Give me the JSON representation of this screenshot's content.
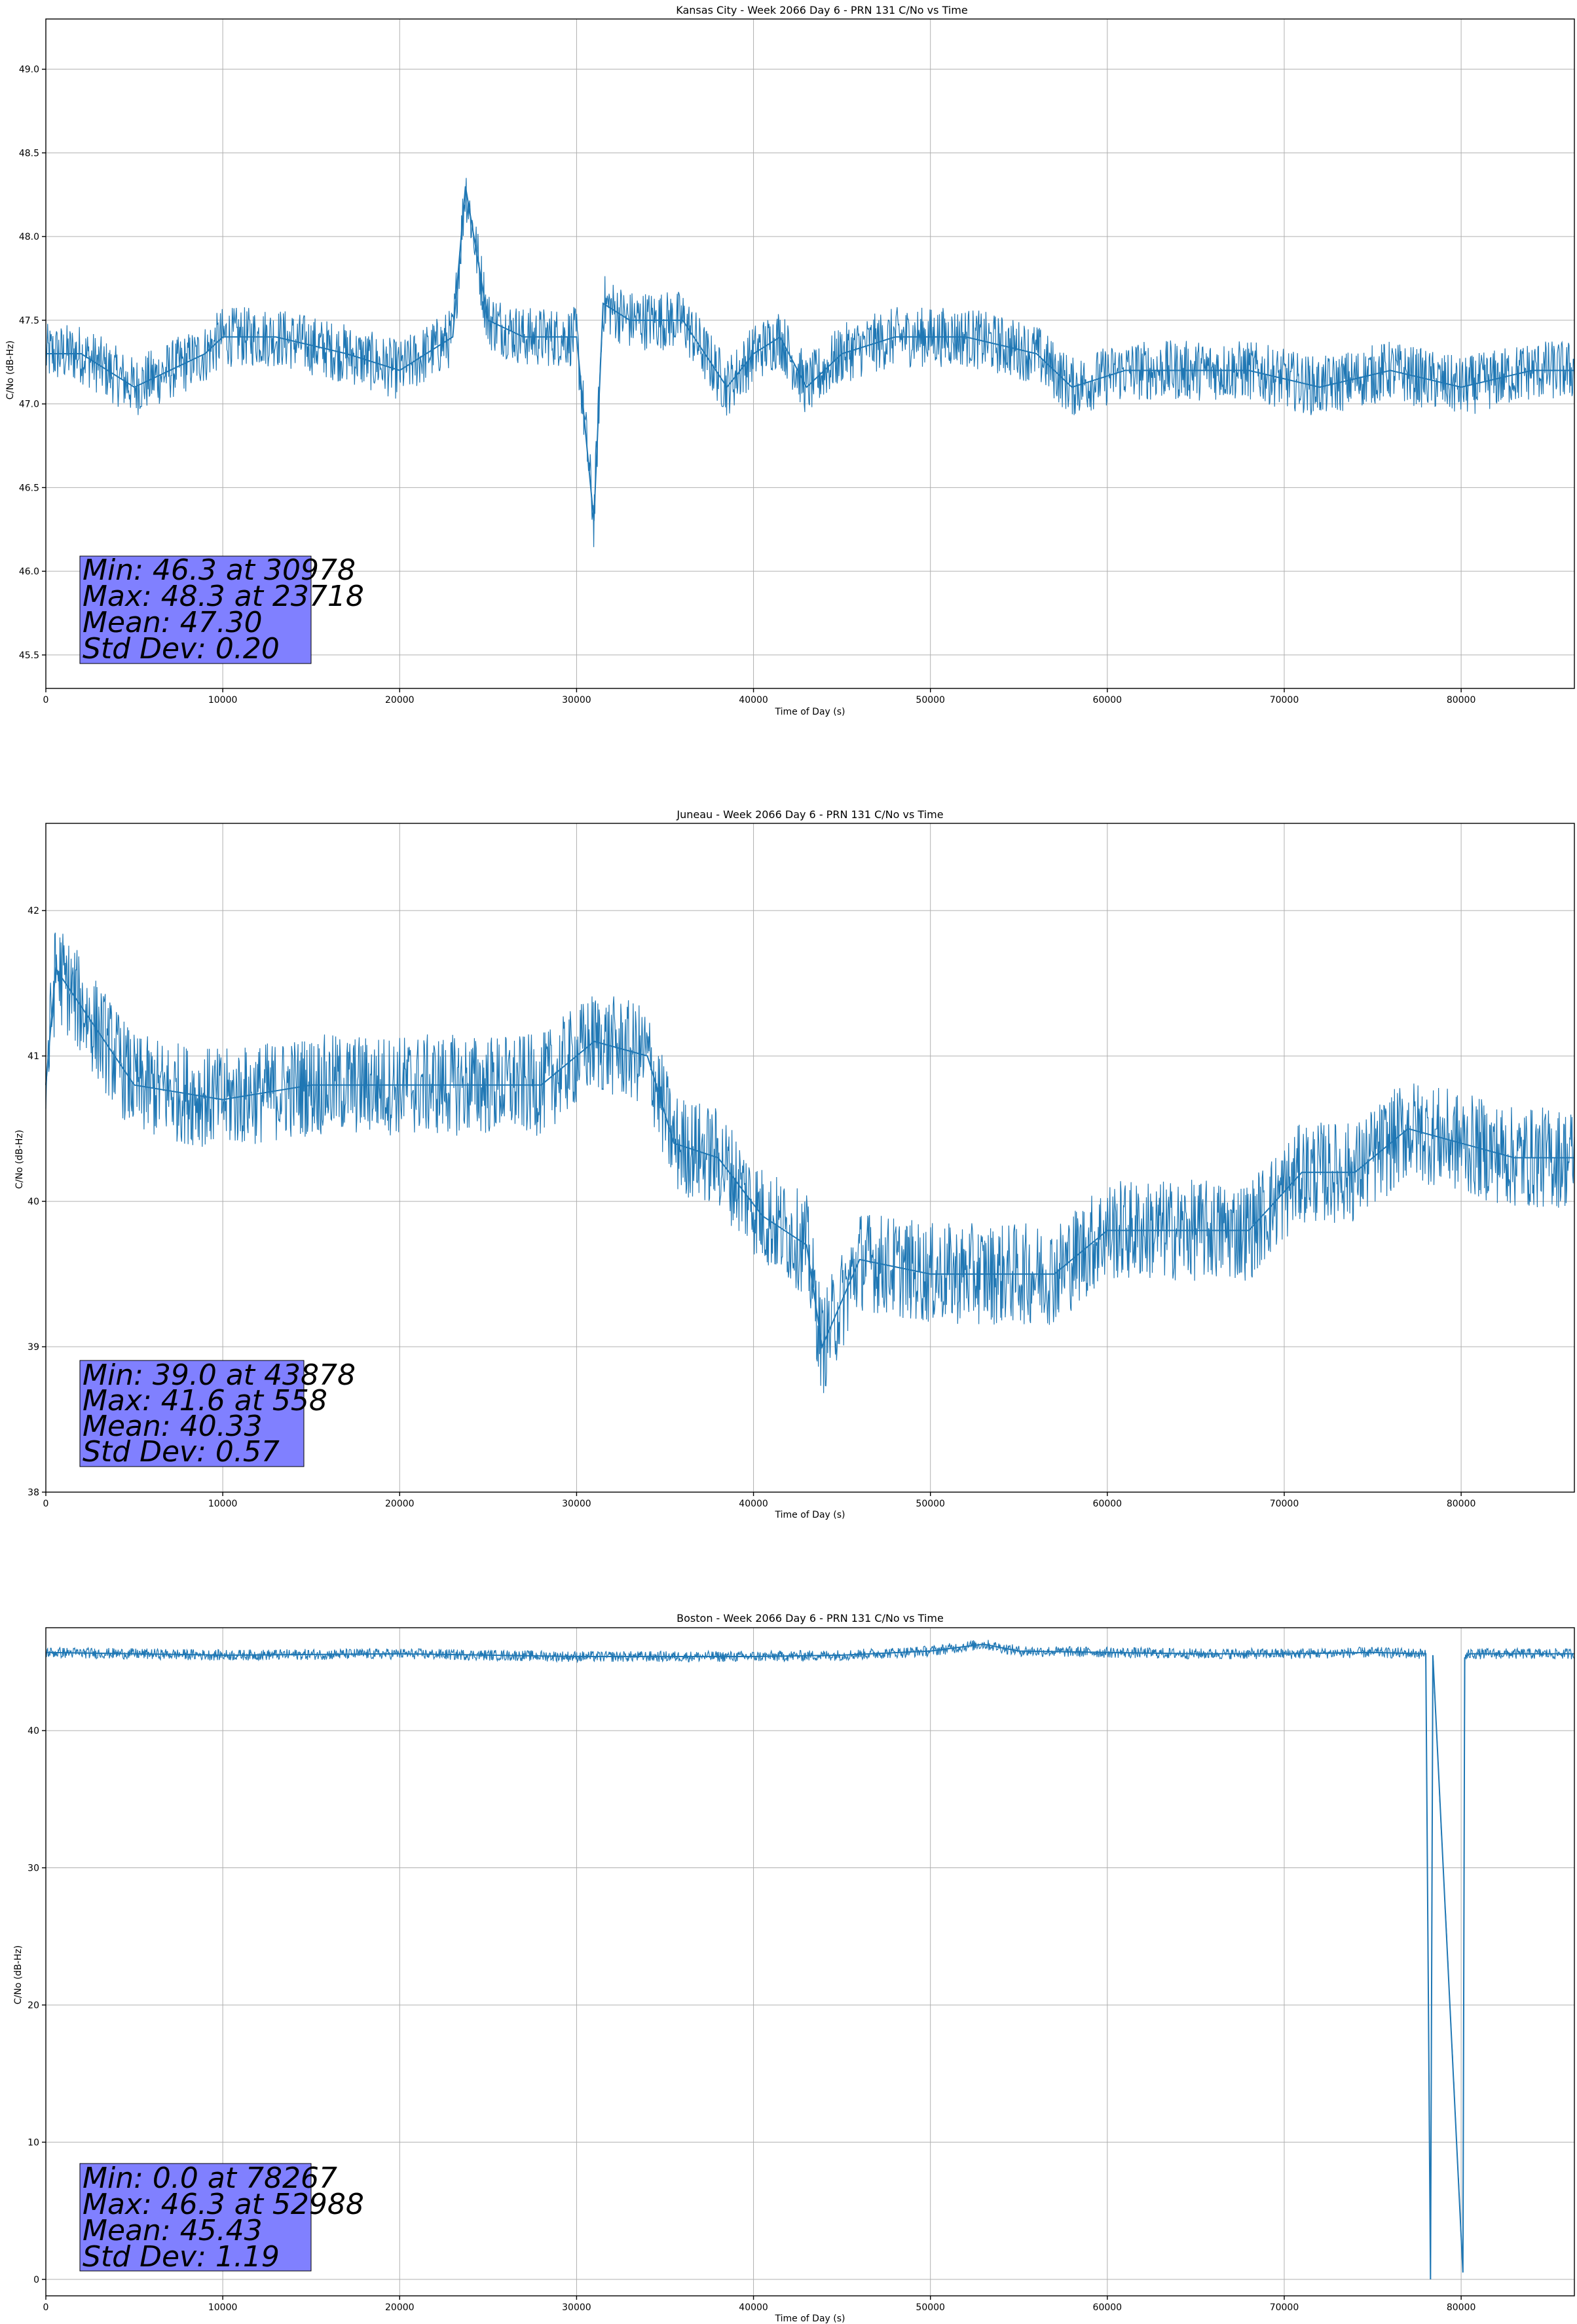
{
  "chart_data": [
    {
      "type": "line",
      "title": "Kansas City - Week 2066 Day 6 - PRN 131 C/No vs Time",
      "xlabel": "Time of Day (s)",
      "ylabel": "C/No (dB-Hz)",
      "xlim": [
        0,
        86400
      ],
      "ylim": [
        45.3,
        49.3
      ],
      "xticks": [
        0,
        10000,
        20000,
        30000,
        40000,
        50000,
        60000,
        70000,
        80000
      ],
      "yticks": [
        45.5,
        46.0,
        46.5,
        47.0,
        47.5,
        48.0,
        48.5,
        49.0
      ],
      "ytick_labels": [
        "45.5",
        "46.0",
        "46.5",
        "47.0",
        "47.5",
        "48.0",
        "48.5",
        "49.0"
      ],
      "grid": true,
      "series_color": "#1f77b4",
      "annotation_color": "#8080ff",
      "series": [
        {
          "x": [
            0,
            2000,
            5000,
            9000,
            10000,
            13000,
            17000,
            20000,
            23000,
            23718,
            25000,
            27000,
            30000,
            30978,
            31500,
            33000,
            36000,
            38500,
            40000,
            41500,
            43000,
            45000,
            48000,
            52000,
            56000,
            58000,
            61000,
            64000,
            68000,
            72000,
            76000,
            80000,
            84000,
            86400
          ],
          "y": [
            47.3,
            47.3,
            47.1,
            47.3,
            47.4,
            47.4,
            47.3,
            47.2,
            47.4,
            48.3,
            47.5,
            47.4,
            47.4,
            46.3,
            47.6,
            47.5,
            47.5,
            47.1,
            47.3,
            47.4,
            47.1,
            47.3,
            47.4,
            47.4,
            47.3,
            47.1,
            47.2,
            47.2,
            47.2,
            47.1,
            47.2,
            47.1,
            47.2,
            47.2
          ]
        }
      ],
      "stats": [
        "Min: 46.3 at 30978",
        "Max: 48.3 at 23718",
        "Mean: 47.30",
        "Std Dev: 0.20"
      ]
    },
    {
      "type": "line",
      "title": "Juneau - Week 2066 Day 6 - PRN 131 C/No vs Time",
      "xlabel": "Time of Day (s)",
      "ylabel": "C/No (dB-Hz)",
      "xlim": [
        0,
        86400
      ],
      "ylim": [
        38,
        42.6
      ],
      "xticks": [
        0,
        10000,
        20000,
        30000,
        40000,
        50000,
        60000,
        70000,
        80000
      ],
      "yticks": [
        38,
        39,
        40,
        41,
        42
      ],
      "ytick_labels": [
        "38",
        "39",
        "40",
        "41",
        "42"
      ],
      "grid": true,
      "series_color": "#1f77b4",
      "annotation_color": "#8080ff",
      "series": [
        {
          "x": [
            0,
            558,
            5000,
            10000,
            15000,
            20000,
            25000,
            28000,
            31000,
            34000,
            35500,
            38000,
            40500,
            43000,
            43878,
            46000,
            50000,
            54000,
            57000,
            60000,
            64000,
            68000,
            71000,
            74000,
            77000,
            80000,
            83000,
            86400
          ],
          "y": [
            40.8,
            41.6,
            40.8,
            40.7,
            40.8,
            40.8,
            40.8,
            40.8,
            41.1,
            41.0,
            40.4,
            40.3,
            39.9,
            39.7,
            39.0,
            39.6,
            39.5,
            39.5,
            39.5,
            39.8,
            39.8,
            39.8,
            40.2,
            40.2,
            40.5,
            40.4,
            40.3,
            40.3
          ]
        }
      ],
      "stats": [
        "Min: 39.0 at 43878",
        "Max: 41.6 at 558",
        "Mean: 40.33",
        "Std Dev: 0.57"
      ]
    },
    {
      "type": "line",
      "title": "Boston - Week 2066 Day 6 - PRN 131 C/No vs Time",
      "xlabel": "Time of Day (s)",
      "ylabel": "C/No (dB-Hz)",
      "xlim": [
        0,
        86400
      ],
      "ylim": [
        -1.2,
        47.5
      ],
      "xticks": [
        0,
        10000,
        20000,
        30000,
        40000,
        50000,
        60000,
        70000,
        80000
      ],
      "yticks": [
        0,
        10,
        20,
        30,
        40
      ],
      "ytick_labels": [
        "0",
        "10",
        "20",
        "30",
        "40"
      ],
      "grid": true,
      "series_color": "#1f77b4",
      "annotation_color": "#8080ff",
      "series": [
        {
          "x": [
            0,
            5000,
            10000,
            20000,
            30000,
            40000,
            45000,
            50000,
            52988,
            55000,
            60000,
            65000,
            70000,
            75000,
            78000,
            78267,
            78400,
            80100,
            80200,
            80500,
            84000,
            86400
          ],
          "y": [
            45.7,
            45.6,
            45.5,
            45.6,
            45.4,
            45.4,
            45.5,
            45.8,
            46.3,
            45.8,
            45.7,
            45.6,
            45.6,
            45.7,
            45.6,
            0.0,
            45.5,
            0.5,
            45.3,
            45.6,
            45.6,
            45.6
          ]
        }
      ],
      "stats": [
        "Min: 0.0 at 78267",
        "Max: 46.3 at 52988",
        "Mean: 45.43",
        "Std Dev: 1.19"
      ]
    }
  ]
}
